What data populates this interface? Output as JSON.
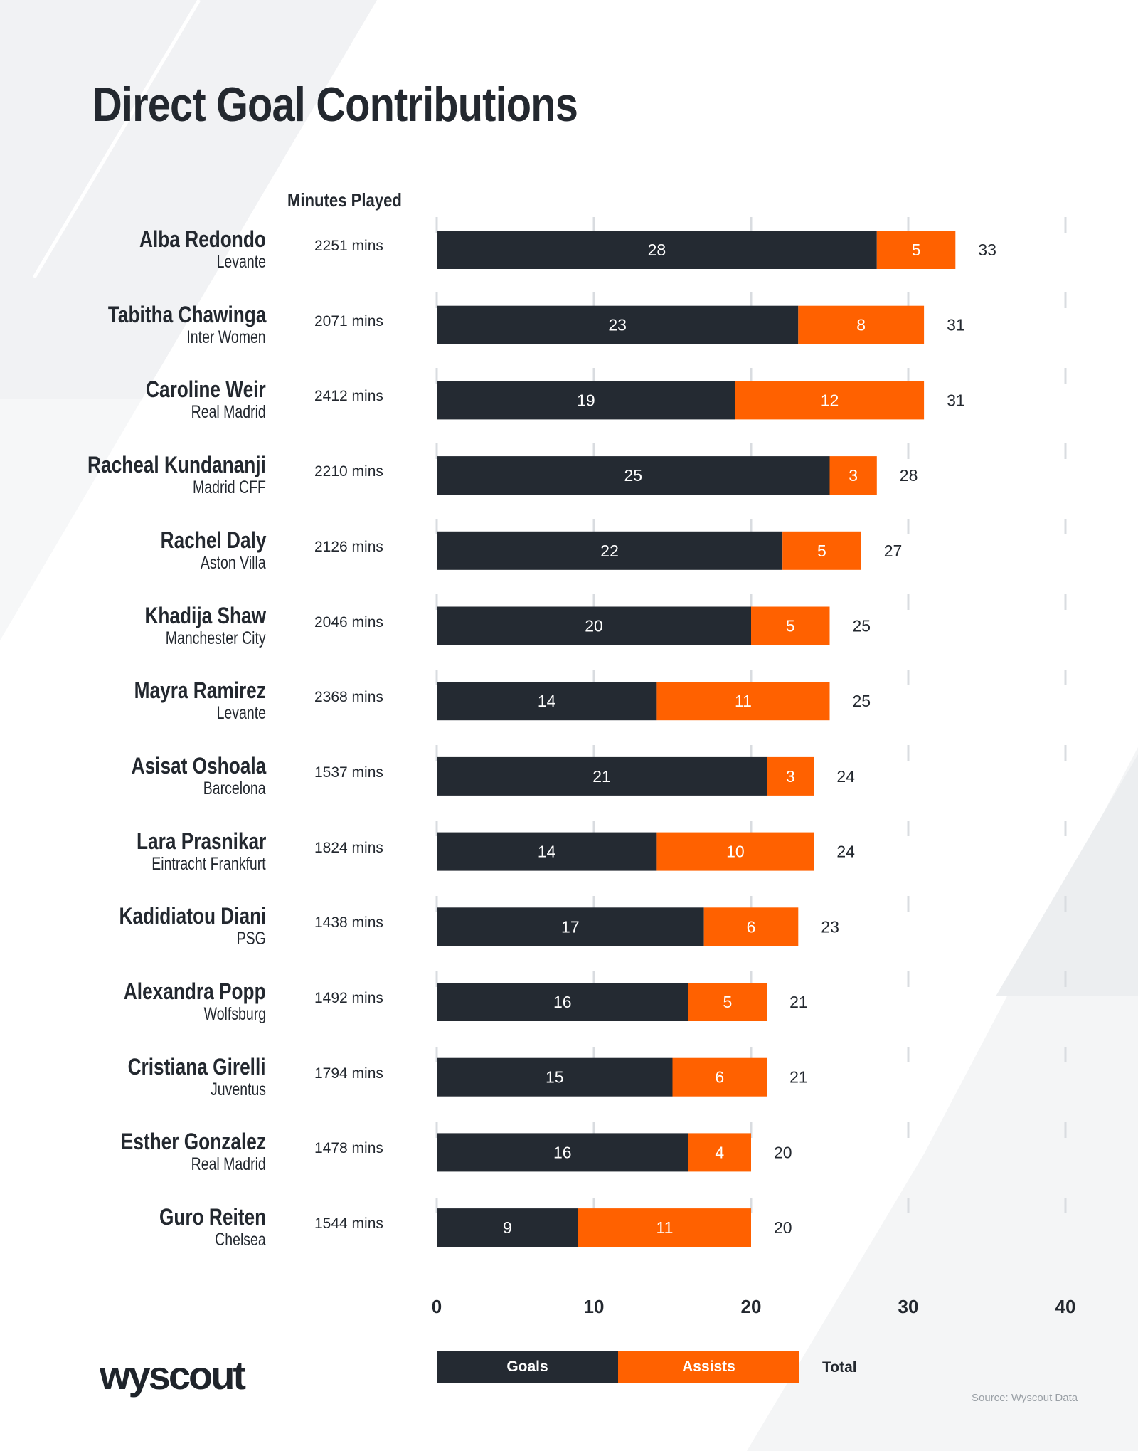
{
  "title": "Direct Goal Contributions",
  "minutes_header": "Minutes Played",
  "colors": {
    "goals": "#242a32",
    "assists": "#ff6100",
    "grid": "#d9dce0"
  },
  "legend": {
    "goals": "Goals",
    "assists": "Assists",
    "total": "Total"
  },
  "logo": "wyscout",
  "source": "Source: Wyscout Data",
  "chart_data": {
    "type": "bar",
    "orientation": "horizontal",
    "stacked": true,
    "title": "Direct Goal Contributions",
    "xlim": [
      0,
      40
    ],
    "xticks": [
      "0",
      "10",
      "20",
      "30",
      "40"
    ],
    "grid": true,
    "legend_placement": "bottom",
    "categories": [
      "Alba Redondo",
      "Tabitha Chawinga",
      "Caroline Weir",
      "Racheal Kundananji",
      "Rachel Daly",
      "Khadija Shaw",
      "Mayra Ramirez",
      "Asisat Oshoala",
      "Lara Prasnikar",
      "Kadidiatou Diani",
      "Alexandra Popp",
      "Cristiana Girelli",
      "Esther Gonzalez",
      "Guro Reiten"
    ],
    "clubs": [
      "Levante",
      "Inter Women",
      "Real Madrid",
      "Madrid CFF",
      "Aston Villa",
      "Manchester City",
      "Levante",
      "Barcelona",
      "Eintracht Frankfurt",
      "PSG",
      "Wolfsburg",
      "Juventus",
      "Real Madrid",
      "Chelsea"
    ],
    "minutes": [
      "2251 mins",
      "2071 mins",
      "2412 mins",
      "2210 mins",
      "2126 mins",
      "2046 mins",
      "2368 mins",
      "1537 mins",
      "1824 mins",
      "1438 mins",
      "1492 mins",
      "1794 mins",
      "1478 mins",
      "1544 mins"
    ],
    "series": [
      {
        "name": "Goals",
        "values": [
          28,
          23,
          19,
          25,
          22,
          20,
          14,
          21,
          14,
          17,
          16,
          15,
          16,
          9
        ]
      },
      {
        "name": "Assists",
        "values": [
          5,
          8,
          12,
          3,
          5,
          5,
          11,
          3,
          10,
          6,
          5,
          6,
          4,
          11
        ]
      }
    ],
    "totals": [
      33,
      31,
      31,
      28,
      27,
      25,
      25,
      24,
      24,
      23,
      21,
      21,
      20,
      20
    ]
  }
}
